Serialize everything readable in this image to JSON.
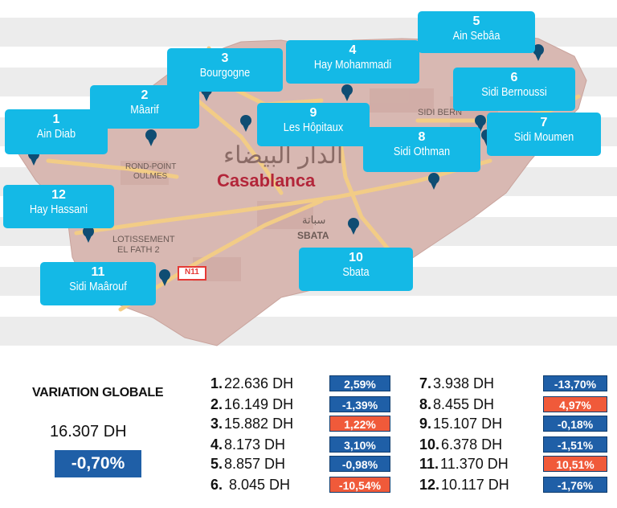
{
  "map": {
    "city_label": "Casablanca",
    "city_label_arabic": "الدار البيضاء",
    "place_labels": {
      "rond_point_line1": "ROND-POINT",
      "rond_point_line2": "OULMES",
      "lotissement_line1": "LOTISSEMENT",
      "lotissement_line2": "EL FATH 2",
      "sbata": "SBATA",
      "sbata_arabic": "سباتة",
      "sidi_bern": "SIDI BERN",
      "road_badge": "N11"
    },
    "colors": {
      "water": "#ebebeb",
      "land": "#d8b8b2",
      "road": "#f3cf8e",
      "pin": "#0f4d73",
      "callout": "#14b9e6"
    },
    "districts": [
      {
        "num": "1",
        "name": "Ain Diab"
      },
      {
        "num": "2",
        "name": "Mâarif"
      },
      {
        "num": "3",
        "name": "Bourgogne"
      },
      {
        "num": "4",
        "name": "Hay Mohammadi"
      },
      {
        "num": "5",
        "name": "Ain Sebâa"
      },
      {
        "num": "6",
        "name": "Sidi Bernoussi"
      },
      {
        "num": "7",
        "name": "Sidi Moumen"
      },
      {
        "num": "8",
        "name": "Sidi Othman"
      },
      {
        "num": "9",
        "name": "Les Hôpitaux"
      },
      {
        "num": "10",
        "name": "Sbata"
      },
      {
        "num": "11",
        "name": "Sidi Maârouf"
      },
      {
        "num": "12",
        "name": "Hay Hassani"
      }
    ]
  },
  "summary": {
    "title": "VARIATION GLOBALE",
    "amount": "16.307 DH",
    "variation": "-0,70%"
  },
  "list": [
    {
      "idx": "1.",
      "amount": "22.636 DH",
      "change": "2,59%",
      "color": "#1f5fa7"
    },
    {
      "idx": "2.",
      "amount": "16.149 DH",
      "change": "-1,39%",
      "color": "#1f5fa7"
    },
    {
      "idx": "3.",
      "amount": "15.882 DH",
      "change": "1,22%",
      "color": "#f05a3a"
    },
    {
      "idx": "4.",
      "amount": "8.173 DH",
      "change": "3,10%",
      "color": "#1f5fa7"
    },
    {
      "idx": "5.",
      "amount": "8.857 DH",
      "change": "-0,98%",
      "color": "#1f5fa7"
    },
    {
      "idx": "6.",
      "amount": "8.045 DH",
      "change": "-10,54%",
      "color": "#f05a3a"
    },
    {
      "idx": "7.",
      "amount": "3.938 DH",
      "change": "-13,70%",
      "color": "#1f5fa7"
    },
    {
      "idx": "8.",
      "amount": "8.455 DH",
      "change": "4,97%",
      "color": "#f05a3a"
    },
    {
      "idx": "9.",
      "amount": "15.107 DH",
      "change": "-0,18%",
      "color": "#1f5fa7"
    },
    {
      "idx": "10.",
      "amount": "6.378 DH",
      "change": "-1,51%",
      "color": "#1f5fa7"
    },
    {
      "idx": "11.",
      "amount": "11.370 DH",
      "change": "10,51%",
      "color": "#f05a3a"
    },
    {
      "idx": "12.",
      "amount": "10.117 DH",
      "change": "-1,76%",
      "color": "#1f5fa7"
    }
  ]
}
